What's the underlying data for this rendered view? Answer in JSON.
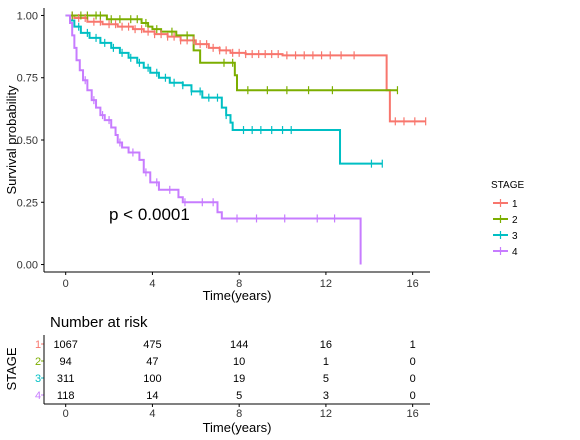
{
  "chart_data": [
    {
      "type": "line",
      "subtype": "kaplan-meier",
      "xlabel": "Time(years)",
      "ylabel": "Survival probability",
      "xlim": [
        -1,
        16.8
      ],
      "ylim": [
        -0.03,
        1.03
      ],
      "x_ticks": [
        "0",
        "4",
        "8",
        "12",
        "16"
      ],
      "y_ticks": [
        "0.00",
        "0.25",
        "0.50",
        "0.75",
        "1.00"
      ],
      "annotation": "p < 0.0001",
      "legend": {
        "title": "STAGE",
        "position": "right"
      },
      "grid": false,
      "series": [
        {
          "name": "1",
          "color": "#F8766D",
          "steps": [
            [
              0,
              1.0
            ],
            [
              0.4,
              0.99
            ],
            [
              1.0,
              0.975
            ],
            [
              1.7,
              0.965
            ],
            [
              2.4,
              0.955
            ],
            [
              3.1,
              0.945
            ],
            [
              3.6,
              0.935
            ],
            [
              4.1,
              0.925
            ],
            [
              4.7,
              0.915
            ],
            [
              5.3,
              0.9
            ],
            [
              6.0,
              0.885
            ],
            [
              6.6,
              0.87
            ],
            [
              7.1,
              0.86
            ],
            [
              7.6,
              0.85
            ],
            [
              8.3,
              0.845
            ],
            [
              10.0,
              0.84
            ],
            [
              14.8,
              0.7
            ],
            [
              14.95,
              0.575
            ],
            [
              16.6,
              0.575
            ]
          ],
          "censor_times": [
            0.3,
            0.6,
            0.9,
            1.3,
            1.6,
            2.0,
            2.3,
            2.6,
            2.9,
            3.2,
            3.5,
            3.8,
            4.1,
            4.4,
            4.7,
            5.0,
            5.3,
            5.6,
            5.9,
            6.2,
            6.5,
            6.8,
            7.1,
            7.4,
            7.7,
            8.0,
            8.3,
            8.6,
            8.9,
            9.2,
            9.5,
            9.8,
            10.2,
            10.6,
            11.0,
            11.4,
            11.8,
            12.2,
            12.7,
            13.3,
            15.2,
            15.6,
            16.1,
            16.6
          ]
        },
        {
          "name": "2",
          "color": "#7CAE00",
          "steps": [
            [
              0,
              1.0
            ],
            [
              1.9,
              0.985
            ],
            [
              3.5,
              0.97
            ],
            [
              3.8,
              0.955
            ],
            [
              4.0,
              0.945
            ],
            [
              4.4,
              0.935
            ],
            [
              5.1,
              0.92
            ],
            [
              5.9,
              0.86
            ],
            [
              6.2,
              0.81
            ],
            [
              7.8,
              0.76
            ],
            [
              7.9,
              0.7
            ],
            [
              15.3,
              0.7
            ]
          ],
          "censor_times": [
            0.3,
            0.7,
            1.0,
            1.4,
            1.6,
            2.1,
            2.5,
            3.0,
            3.3,
            3.7,
            4.2,
            4.9,
            5.6,
            7.3,
            7.7,
            8.4,
            9.3,
            10.2,
            11.2,
            12.3,
            15.3
          ]
        },
        {
          "name": "3",
          "color": "#00BFC4",
          "steps": [
            [
              0,
              1.0
            ],
            [
              0.2,
              0.98
            ],
            [
              0.4,
              0.955
            ],
            [
              0.7,
              0.93
            ],
            [
              1.1,
              0.91
            ],
            [
              1.6,
              0.89
            ],
            [
              2.1,
              0.87
            ],
            [
              2.5,
              0.85
            ],
            [
              2.9,
              0.83
            ],
            [
              3.3,
              0.81
            ],
            [
              3.6,
              0.79
            ],
            [
              3.9,
              0.77
            ],
            [
              4.3,
              0.75
            ],
            [
              4.8,
              0.73
            ],
            [
              5.4,
              0.72
            ],
            [
              5.8,
              0.695
            ],
            [
              6.3,
              0.67
            ],
            [
              7.2,
              0.63
            ],
            [
              7.4,
              0.6
            ],
            [
              7.6,
              0.57
            ],
            [
              7.7,
              0.54
            ],
            [
              12.6,
              0.54
            ],
            [
              12.65,
              0.405
            ],
            [
              14.6,
              0.405
            ]
          ],
          "censor_times": [
            0.6,
            1.0,
            1.4,
            1.8,
            2.2,
            2.6,
            3.0,
            3.4,
            3.8,
            4.2,
            4.6,
            5.0,
            5.4,
            5.8,
            6.2,
            6.6,
            7.0,
            7.4,
            8.2,
            8.6,
            9.0,
            9.5,
            10.0,
            10.4,
            14.1,
            14.6
          ]
        },
        {
          "name": "4",
          "color": "#C77CFF",
          "steps": [
            [
              0,
              1.0
            ],
            [
              0.2,
              0.97
            ],
            [
              0.3,
              0.92
            ],
            [
              0.4,
              0.87
            ],
            [
              0.5,
              0.82
            ],
            [
              0.65,
              0.78
            ],
            [
              0.8,
              0.74
            ],
            [
              1.0,
              0.7
            ],
            [
              1.2,
              0.66
            ],
            [
              1.4,
              0.63
            ],
            [
              1.6,
              0.6
            ],
            [
              1.8,
              0.58
            ],
            [
              2.1,
              0.55
            ],
            [
              2.3,
              0.52
            ],
            [
              2.4,
              0.49
            ],
            [
              2.6,
              0.47
            ],
            [
              2.9,
              0.45
            ],
            [
              3.4,
              0.42
            ],
            [
              3.6,
              0.37
            ],
            [
              3.9,
              0.33
            ],
            [
              4.3,
              0.3
            ],
            [
              5.2,
              0.27
            ],
            [
              5.4,
              0.25
            ],
            [
              7.0,
              0.21
            ],
            [
              7.2,
              0.185
            ],
            [
              13.6,
              0.185
            ],
            [
              13.6,
              0.0
            ]
          ],
          "censor_times": [
            0.9,
            1.3,
            1.7,
            2.0,
            2.5,
            3.1,
            3.7,
            4.2,
            4.8,
            5.5,
            6.3,
            6.8,
            7.9,
            8.8,
            10.1,
            11.6,
            12.4
          ]
        }
      ]
    },
    {
      "type": "table",
      "title": "Number at risk",
      "xlabel": "Time(years)",
      "ylabel": "STAGE",
      "x_ticks": [
        "0",
        "4",
        "8",
        "12",
        "16"
      ],
      "rows": [
        {
          "stage": "1",
          "color": "#F8766D",
          "values": [
            "1067",
            "475",
            "144",
            "16",
            "1"
          ]
        },
        {
          "stage": "2",
          "color": "#7CAE00",
          "values": [
            "94",
            "47",
            "10",
            "1",
            "0"
          ]
        },
        {
          "stage": "3",
          "color": "#00BFC4",
          "values": [
            "311",
            "100",
            "19",
            "5",
            "0"
          ]
        },
        {
          "stage": "4",
          "color": "#C77CFF",
          "values": [
            "118",
            "14",
            "5",
            "3",
            "0"
          ]
        }
      ]
    }
  ]
}
